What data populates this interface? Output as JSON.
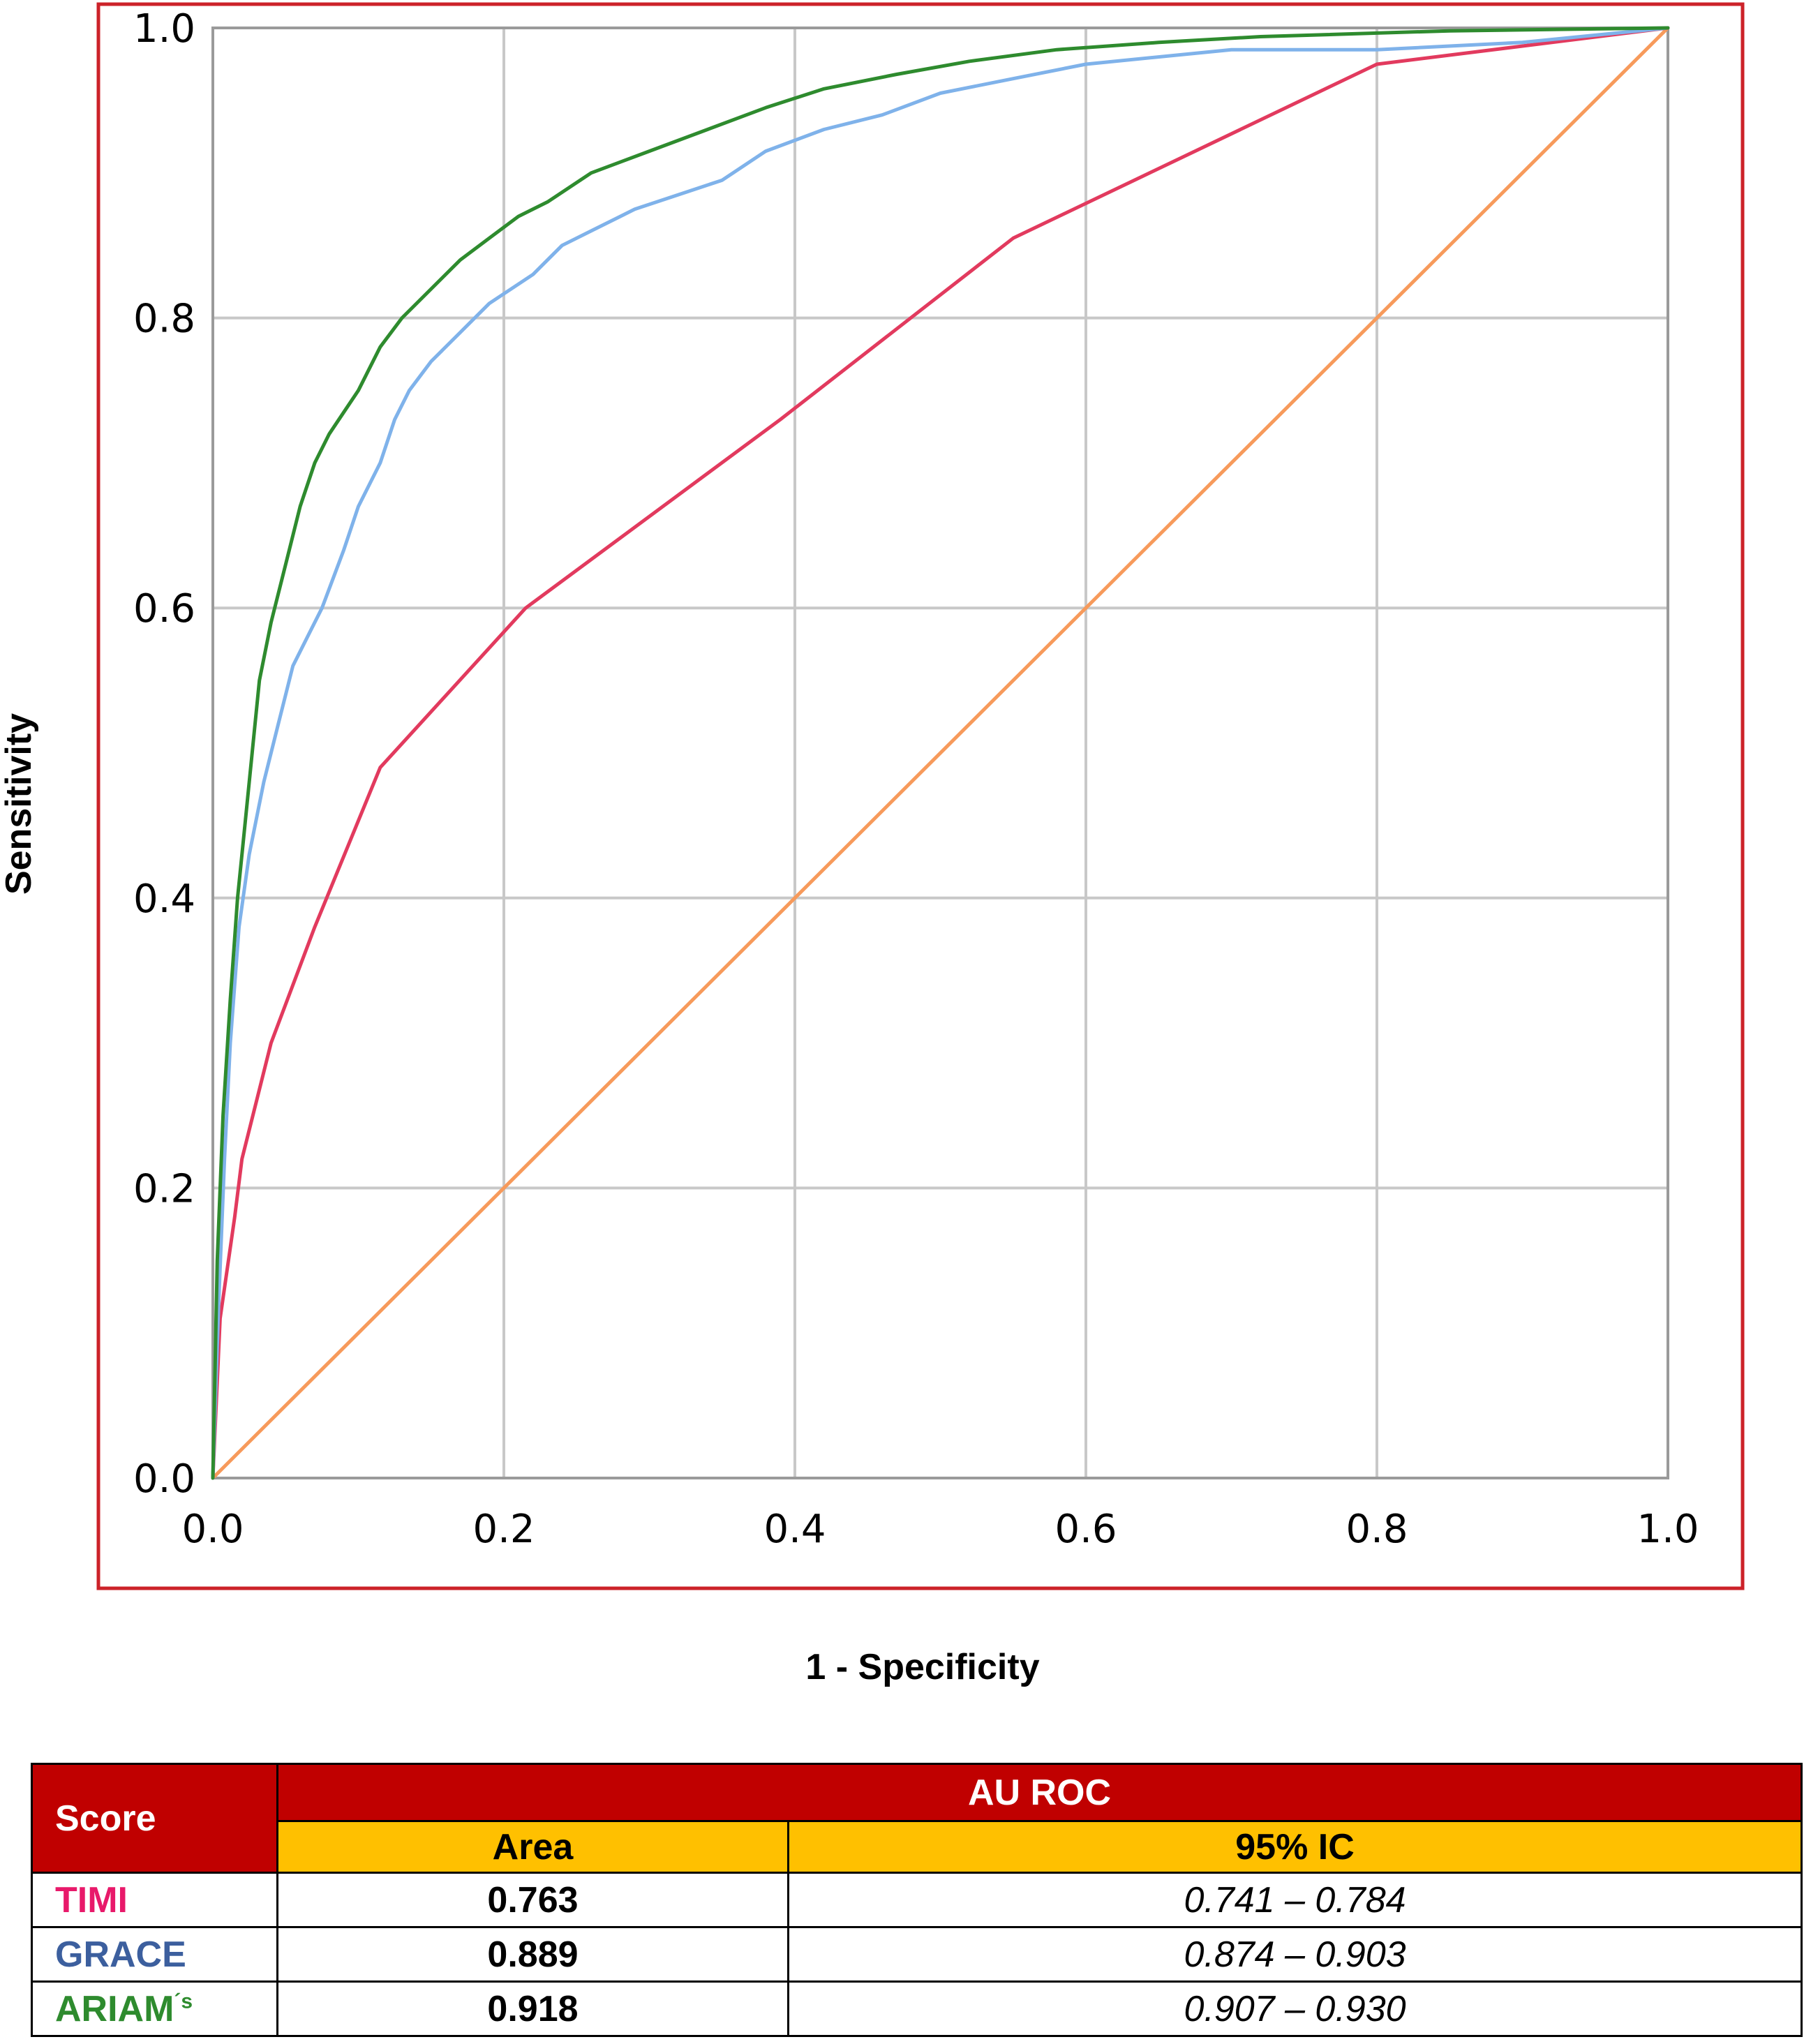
{
  "chart_data": {
    "type": "line",
    "title": "",
    "xlabel": "1 - Specificity",
    "ylabel": "Sensitivity",
    "xlim": [
      0,
      1
    ],
    "ylim": [
      0,
      1
    ],
    "x_ticks": [
      "0.0",
      "0.2",
      "0.4",
      "0.6",
      "0.8",
      "1.0"
    ],
    "y_ticks": [
      "0.0",
      "0.2",
      "0.4",
      "0.6",
      "0.8",
      "1.0"
    ],
    "grid": true,
    "frame_color": "#cc2229",
    "series": [
      {
        "key": "reference",
        "color": "#f79a5b",
        "points": [
          [
            0,
            0
          ],
          [
            1,
            1
          ]
        ]
      },
      {
        "key": "timi",
        "color": "#e23a5e",
        "points": [
          [
            0,
            0
          ],
          [
            0.005,
            0.11
          ],
          [
            0.015,
            0.18
          ],
          [
            0.02,
            0.22
          ],
          [
            0.04,
            0.3
          ],
          [
            0.07,
            0.38
          ],
          [
            0.115,
            0.49
          ],
          [
            0.215,
            0.6
          ],
          [
            0.39,
            0.73
          ],
          [
            0.55,
            0.855
          ],
          [
            0.8,
            0.975
          ],
          [
            1,
            1
          ]
        ]
      },
      {
        "key": "grace",
        "color": "#7fb2ea",
        "points": [
          [
            0,
            0
          ],
          [
            0.004,
            0.12
          ],
          [
            0.008,
            0.22
          ],
          [
            0.012,
            0.3
          ],
          [
            0.018,
            0.38
          ],
          [
            0.025,
            0.43
          ],
          [
            0.035,
            0.48
          ],
          [
            0.045,
            0.52
          ],
          [
            0.055,
            0.56
          ],
          [
            0.065,
            0.58
          ],
          [
            0.075,
            0.6
          ],
          [
            0.09,
            0.64
          ],
          [
            0.1,
            0.67
          ],
          [
            0.115,
            0.7
          ],
          [
            0.125,
            0.73
          ],
          [
            0.135,
            0.75
          ],
          [
            0.15,
            0.77
          ],
          [
            0.17,
            0.79
          ],
          [
            0.19,
            0.81
          ],
          [
            0.22,
            0.83
          ],
          [
            0.24,
            0.85
          ],
          [
            0.26,
            0.86
          ],
          [
            0.29,
            0.875
          ],
          [
            0.32,
            0.885
          ],
          [
            0.35,
            0.895
          ],
          [
            0.38,
            0.915
          ],
          [
            0.42,
            0.93
          ],
          [
            0.46,
            0.94
          ],
          [
            0.5,
            0.955
          ],
          [
            0.55,
            0.965
          ],
          [
            0.6,
            0.975
          ],
          [
            0.7,
            0.985
          ],
          [
            0.8,
            0.985
          ],
          [
            0.9,
            0.99
          ],
          [
            1,
            1
          ]
        ]
      },
      {
        "key": "ariam",
        "color": "#2e8b2e",
        "points": [
          [
            0,
            0
          ],
          [
            0.003,
            0.15
          ],
          [
            0.007,
            0.25
          ],
          [
            0.012,
            0.33
          ],
          [
            0.017,
            0.4
          ],
          [
            0.022,
            0.45
          ],
          [
            0.027,
            0.5
          ],
          [
            0.032,
            0.55
          ],
          [
            0.04,
            0.59
          ],
          [
            0.05,
            0.63
          ],
          [
            0.06,
            0.67
          ],
          [
            0.07,
            0.7
          ],
          [
            0.08,
            0.72
          ],
          [
            0.09,
            0.735
          ],
          [
            0.1,
            0.75
          ],
          [
            0.115,
            0.78
          ],
          [
            0.13,
            0.8
          ],
          [
            0.15,
            0.82
          ],
          [
            0.17,
            0.84
          ],
          [
            0.19,
            0.855
          ],
          [
            0.21,
            0.87
          ],
          [
            0.23,
            0.88
          ],
          [
            0.26,
            0.9
          ],
          [
            0.3,
            0.915
          ],
          [
            0.34,
            0.93
          ],
          [
            0.38,
            0.945
          ],
          [
            0.42,
            0.958
          ],
          [
            0.47,
            0.968
          ],
          [
            0.52,
            0.977
          ],
          [
            0.58,
            0.985
          ],
          [
            0.65,
            0.99
          ],
          [
            0.72,
            0.994
          ],
          [
            0.85,
            0.998
          ],
          [
            1,
            1
          ]
        ]
      }
    ]
  },
  "table": {
    "header_score": "Score",
    "header_group": "AU ROC",
    "header_area": "Area",
    "header_ci": "95% IC",
    "rows": [
      {
        "score": "TIMI",
        "color": "#e8196a",
        "area": "0.763",
        "ci": "0.741 – 0.784"
      },
      {
        "score": "GRACE",
        "color": "#3c5f9e",
        "area": "0.889",
        "ci": "0.874 – 0.903"
      },
      {
        "score": "ARIAM",
        "score_sup": "´s",
        "color": "#2e8b2e",
        "area": "0.918",
        "ci": "0.907 – 0.930"
      }
    ]
  }
}
